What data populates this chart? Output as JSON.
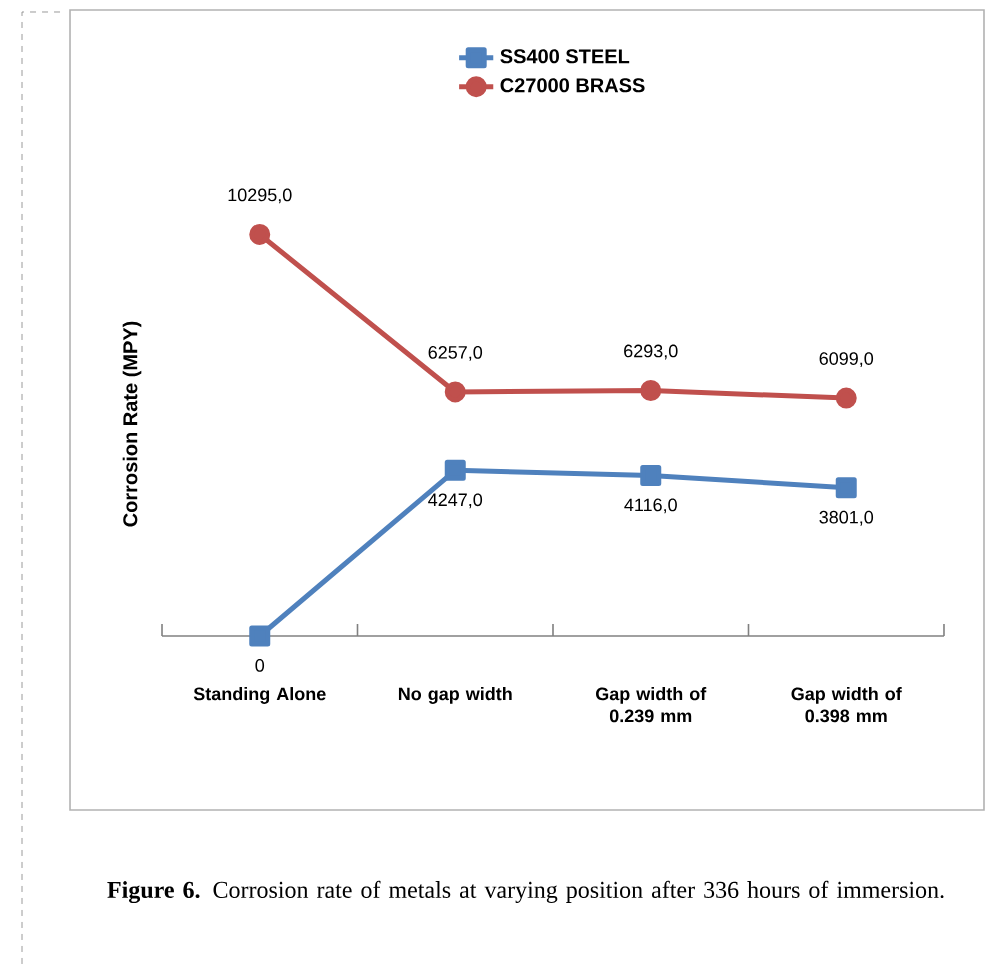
{
  "chart_data": {
    "type": "line",
    "ylabel": "Corrosion Rate (MPY)",
    "categories": [
      "Standing Alone",
      "No gap width",
      "Gap width of 0.239 mm",
      "Gap width of 0.398 mm"
    ],
    "series": [
      {
        "name": "SS400 STEEL",
        "color": "#4f81bd",
        "marker": "square",
        "values": [
          0,
          4247,
          4116,
          3801
        ],
        "value_labels": [
          "0",
          "4247,0",
          "4116,0",
          "3801,0"
        ]
      },
      {
        "name": "C27000 BRASS",
        "color": "#c0504d",
        "marker": "circle",
        "values": [
          10295,
          6257,
          6293,
          6099
        ],
        "value_labels": [
          "10295,0",
          "6257,0",
          "6293,0",
          "6099,0"
        ]
      }
    ],
    "relative": false,
    "legend": "top",
    "annotations": [
      "**Figure 6.** Corrosion rate of metals at varying position after 336 hours of immersion."
    ]
  }
}
